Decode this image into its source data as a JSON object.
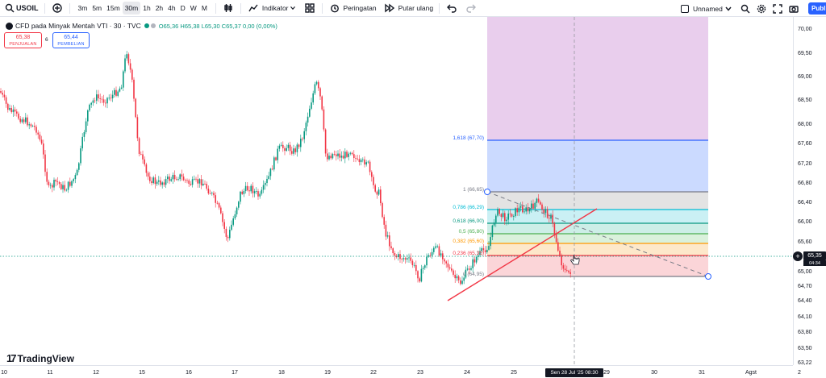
{
  "toolbar": {
    "symbol": "USOIL",
    "timeframes": [
      "3m",
      "5m",
      "15m",
      "30m",
      "1h",
      "2h",
      "4h",
      "D",
      "W",
      "M"
    ],
    "active_timeframe": "30m",
    "indicators_label": "Indikator",
    "alert_label": "Peringatan",
    "replay_label": "Putar ulang",
    "layout_name": "Unnamed",
    "publish_label": "Publ"
  },
  "legend": {
    "title": "CFD pada Minyak Mentah VTI · 30 · TVC",
    "ohlc": "O65,36 H65,38 L65,30 C65,37 0,00 (0,00%)",
    "sell_price": "65,38",
    "sell_label": "PENJUALAN",
    "spread": "6",
    "buy_price": "65,44",
    "buy_label": "PEMBELIAN"
  },
  "price_axis": {
    "ticks": [
      "70,00",
      "69,50",
      "69,00",
      "68,50",
      "68,00",
      "67,60",
      "67,20",
      "66,80",
      "66,40",
      "66,00",
      "65,60",
      "65,00",
      "64,70",
      "64,40",
      "64,10",
      "63,80",
      "63,50",
      "63,22"
    ],
    "current_price": "65,35",
    "current_sub": "04:34"
  },
  "time_axis": {
    "ticks": [
      "10",
      "11",
      "12",
      "15",
      "16",
      "17",
      "18",
      "19",
      "22",
      "23",
      "24",
      "25",
      "29",
      "30",
      "31",
      "Agst",
      "2"
    ],
    "crosshair_label": "Sen 28 Jul '25   08:30"
  },
  "fib_levels": [
    {
      "label": "1,618 (67,70)",
      "color": "#2962ff"
    },
    {
      "label": "1 (66,65)",
      "color": "#787b86"
    },
    {
      "label": "0,786 (66,29)",
      "color": "#00bcd4"
    },
    {
      "label": "0,618 (66,00)",
      "color": "#089981"
    },
    {
      "label": "0,5 (65,80)",
      "color": "#4caf50"
    },
    {
      "label": "0,382 (65,60)",
      "color": "#ff9800"
    },
    {
      "label": "0,236 (65,35)",
      "color": "#f23645"
    },
    {
      "label": "0 (64,95)",
      "color": "#787b86"
    }
  ],
  "brand": "TradingView",
  "colors": {
    "up": "#089981",
    "down": "#f23645",
    "accent": "#2962ff"
  }
}
